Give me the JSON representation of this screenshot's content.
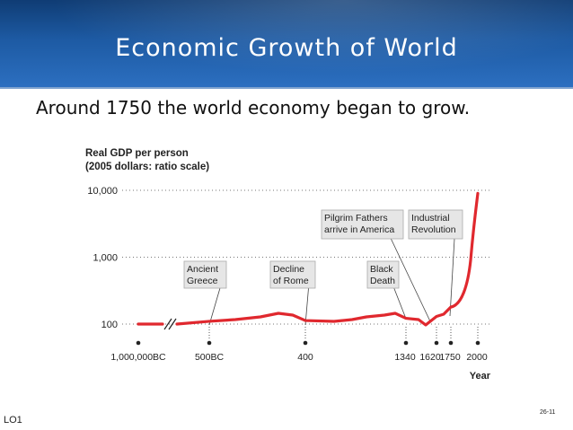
{
  "slide": {
    "title": "Economic Growth of World",
    "subtitle": "Around 1750 the world economy began to grow.",
    "footer_left": "LO1",
    "footer_right": "26-11"
  },
  "colors": {
    "header_dark": "#0f3c74",
    "header_light": "#2c6fc0",
    "series_line": "#e0282e",
    "annotation_box": "#e6e6e6"
  },
  "chart_data": {
    "type": "line",
    "title": "Real GDP per person",
    "subtitle": "(2005 dollars: ratio scale)",
    "xlabel": "Year",
    "y_scale": "log",
    "ylim": [
      60,
      13000
    ],
    "y_ticks": [
      {
        "value": 100,
        "label": "100"
      },
      {
        "value": 1000,
        "label": "1,000"
      },
      {
        "value": 10000,
        "label": "10,000"
      }
    ],
    "x_axis_break": "between 1,000,000BC and 500BC",
    "x_ticks": [
      {
        "label": "1,000,000BC"
      },
      {
        "label": "500BC"
      },
      {
        "label": "400"
      },
      {
        "label": "1340"
      },
      {
        "label": "1620"
      },
      {
        "label": "1750"
      },
      {
        "label": "2000"
      }
    ],
    "series": [
      {
        "points": [
          {
            "x": "1,000,000BC",
            "y": 100
          },
          {
            "x": "500BC",
            "y": 110
          },
          {
            "x": "400",
            "y": 113
          },
          {
            "x": "1340",
            "y": 122
          },
          {
            "x": "1620",
            "y": 130
          },
          {
            "x": "1750",
            "y": 180
          },
          {
            "x": "2000",
            "y": 9000
          }
        ]
      }
    ],
    "annotations": [
      {
        "text": [
          "Ancient",
          "Greece"
        ]
      },
      {
        "text": [
          "Decline",
          "of Rome"
        ]
      },
      {
        "text": [
          "Black",
          "Death"
        ]
      },
      {
        "text": [
          "Pilgrim Fathers",
          "arrive in America"
        ]
      },
      {
        "text": [
          "Industrial",
          "Revolution"
        ]
      }
    ]
  }
}
